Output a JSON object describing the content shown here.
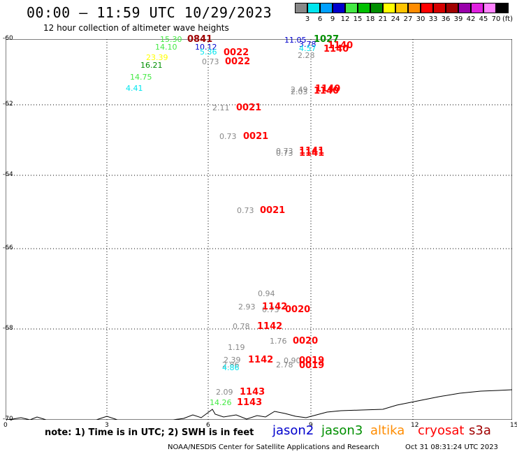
{
  "title": "00:00 – 11:59 UTC 10/29/2023",
  "subtitle": "12 hour collection of altimeter wave heights",
  "color_scale": {
    "unit": "(ft)",
    "steps": [
      {
        "value": "3",
        "color": "#888888"
      },
      {
        "value": "6",
        "color": "#00e5ee"
      },
      {
        "value": "9",
        "color": "#00a0ff"
      },
      {
        "value": "12",
        "color": "#0000cd"
      },
      {
        "value": "15",
        "color": "#44e944"
      },
      {
        "value": "18",
        "color": "#00c000"
      },
      {
        "value": "21",
        "color": "#008f00"
      },
      {
        "value": "24",
        "color": "#ffff00"
      },
      {
        "value": "27",
        "color": "#ffc400"
      },
      {
        "value": "30",
        "color": "#ff8c00"
      },
      {
        "value": "33",
        "color": "#ff0000"
      },
      {
        "value": "36",
        "color": "#d50000"
      },
      {
        "value": "39",
        "color": "#a00000"
      },
      {
        "value": "42",
        "color": "#9900aa"
      },
      {
        "value": "45",
        "color": "#e020e0"
      },
      {
        "value": "70",
        "color": "#ff80ff"
      },
      {
        "value": "",
        "color": "#000000"
      }
    ]
  },
  "axes": {
    "lat_labels": [
      "-60",
      "-62",
      "-64",
      "-66",
      "-68",
      "-70"
    ],
    "lon_labels": [
      "0",
      "3",
      "6",
      "9",
      "12",
      "15"
    ]
  },
  "observations": [
    {
      "swh": "15.30",
      "color": "#44e944"
    },
    {
      "time": "0841",
      "color": "#a00000"
    },
    {
      "swh": "14.10",
      "color": "#44e944"
    },
    {
      "swh": "10.12",
      "color": "#0000cd"
    },
    {
      "swh": "5.36",
      "color": "#00e5ee"
    },
    {
      "time": "0022",
      "color": "#ff0000"
    },
    {
      "swh": "23.39",
      "color": "#ffff00"
    },
    {
      "swh": "16.21",
      "color": "#008f00"
    },
    {
      "swh": "0.73",
      "color": "#888888"
    },
    {
      "time": "0022",
      "color": "#ff0000"
    },
    {
      "swh": "14.75",
      "color": "#44e944"
    },
    {
      "swh": "4.41",
      "color": "#00e5ee"
    },
    {
      "swh": "11.05",
      "color": "#0000cd"
    },
    {
      "time": "1027",
      "color": "#008f00"
    },
    {
      "swh": "3.78",
      "color": "#0000cd"
    },
    {
      "swh": "4.57",
      "color": "#00e5ee"
    },
    {
      "time": "1140",
      "color": "#ff0000"
    },
    {
      "time": "1140",
      "color": "#ff0000"
    },
    {
      "swh": "2.28",
      "color": "#888888"
    },
    {
      "swh": "2.49",
      "color": "#888888"
    },
    {
      "swh": "2.03",
      "color": "#888888"
    },
    {
      "time": "1140",
      "color": "#ff0000"
    },
    {
      "time": "1140",
      "color": "#ff0000"
    },
    {
      "swh": "2.11",
      "color": "#888888"
    },
    {
      "time": "0021",
      "color": "#ff0000"
    },
    {
      "swh": "0.73",
      "color": "#888888"
    },
    {
      "time": "0021",
      "color": "#ff0000"
    },
    {
      "swh": "0.73",
      "color": "#888888"
    },
    {
      "swh": "0.73",
      "color": "#888888"
    },
    {
      "time": "1141",
      "color": "#ff0000"
    },
    {
      "time": "1141",
      "color": "#ff0000"
    },
    {
      "swh": "0.73",
      "color": "#888888"
    },
    {
      "time": "0021",
      "color": "#ff0000"
    },
    {
      "swh": "0.94",
      "color": "#888888"
    },
    {
      "swh": "2.93",
      "color": "#888888"
    },
    {
      "swh": "0.73",
      "color": "#888888"
    },
    {
      "time": "1142",
      "color": "#ff0000"
    },
    {
      "time": "0020",
      "color": "#ff0000"
    },
    {
      "swh": "0.78",
      "color": "#888888"
    },
    {
      "time": "1142",
      "color": "#ff0000"
    },
    {
      "swh": "1.76",
      "color": "#888888"
    },
    {
      "time": "0020",
      "color": "#ff0000"
    },
    {
      "swh": "1.19",
      "color": "#888888"
    },
    {
      "swh": "2.39",
      "color": "#888888"
    },
    {
      "swh": "2.86",
      "color": "#888888"
    },
    {
      "swh": "4.86",
      "color": "#00e5ee"
    },
    {
      "time": "1142",
      "color": "#ff0000"
    },
    {
      "swh": "0.90",
      "color": "#888888"
    },
    {
      "time": "0019",
      "color": "#ff0000"
    },
    {
      "swh": "2.78",
      "color": "#888888"
    },
    {
      "time": "0019",
      "color": "#ff0000"
    },
    {
      "swh": "2.09",
      "color": "#888888"
    },
    {
      "time": "1143",
      "color": "#ff0000"
    },
    {
      "swh": "14.26",
      "color": "#44e944"
    },
    {
      "time": "1143",
      "color": "#ff0000"
    }
  ],
  "note": "note: 1) Time is in UTC; 2) SWH is in feet",
  "satellites": [
    {
      "name": "jason2",
      "color": "#0000cd"
    },
    {
      "name": "jason3",
      "color": "#008f00"
    },
    {
      "name": "altika",
      "color": "#ff8c00"
    },
    {
      "name": "cryosat",
      "color": "#ff0000"
    },
    {
      "name": "s3a",
      "color": "#a00000"
    }
  ],
  "footer": {
    "org": "NOAA/NESDIS Center for Satellite Applications and Research",
    "date": "Oct 31 08:31:24 UTC 2023"
  }
}
